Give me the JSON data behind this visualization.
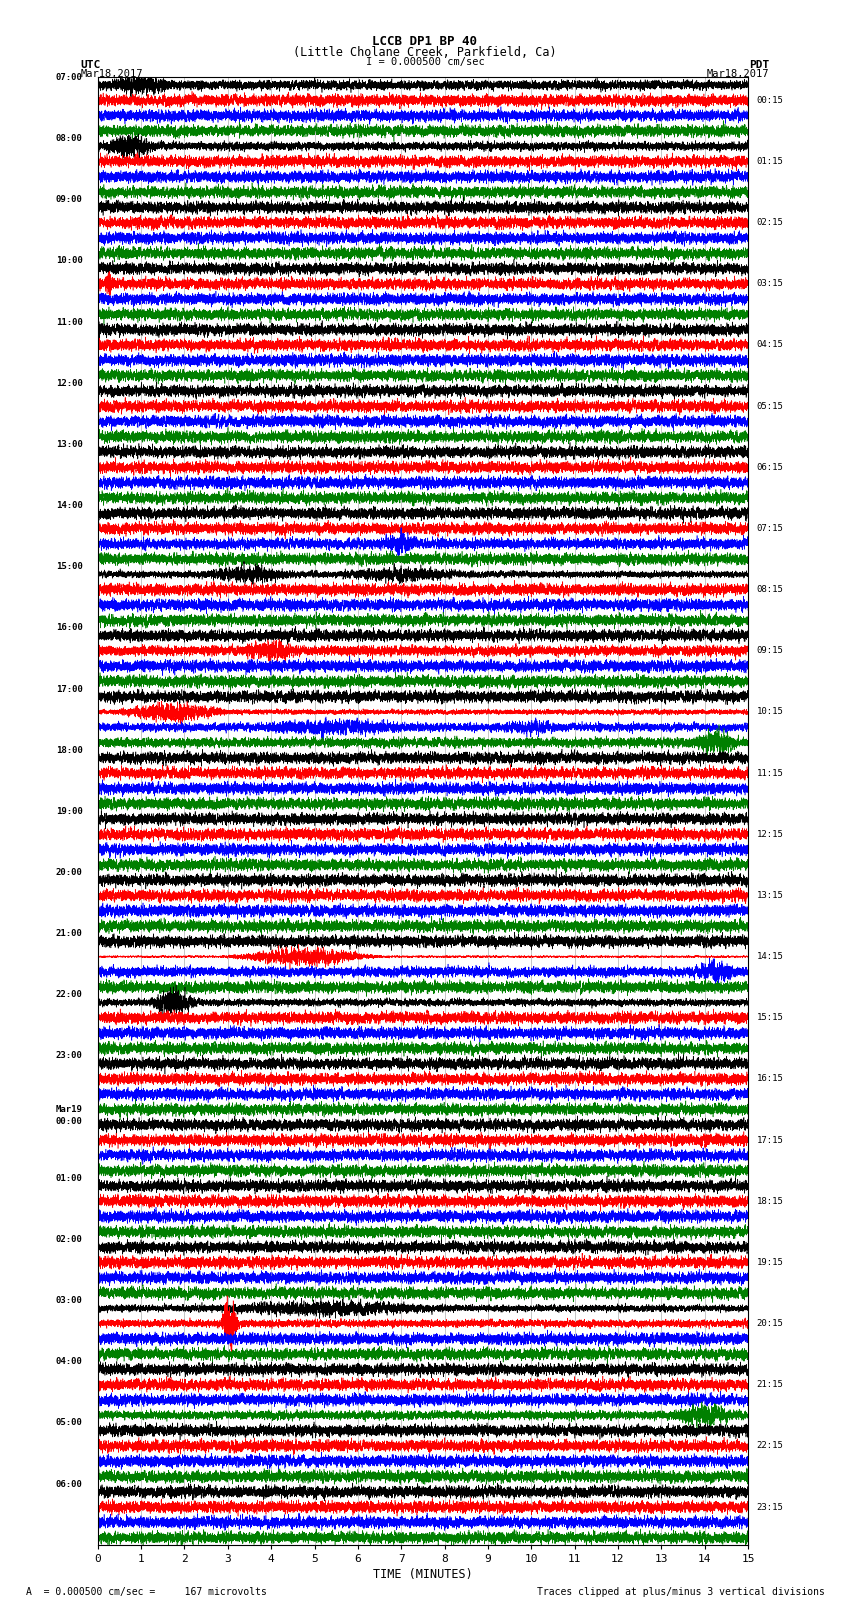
{
  "title_line1": "LCCB DP1 BP 40",
  "title_line2": "(Little Cholane Creek, Parkfield, Ca)",
  "scale_text": "I = 0.000500 cm/sec",
  "footer_left": "= 0.000500 cm/sec =     167 microvolts",
  "footer_right": "Traces clipped at plus/minus 3 vertical divisions",
  "label_utc": "UTC",
  "label_pdt": "PDT",
  "label_date_left": "Mar18,2017",
  "label_date_right": "Mar18,2017",
  "xlabel": "TIME (MINUTES)",
  "left_times": [
    "07:00",
    "08:00",
    "09:00",
    "10:00",
    "11:00",
    "12:00",
    "13:00",
    "14:00",
    "15:00",
    "16:00",
    "17:00",
    "18:00",
    "19:00",
    "20:00",
    "21:00",
    "22:00",
    "23:00",
    "00:00",
    "01:00",
    "02:00",
    "03:00",
    "04:00",
    "05:00",
    "06:00"
  ],
  "right_times": [
    "00:15",
    "01:15",
    "02:15",
    "03:15",
    "04:15",
    "05:15",
    "06:15",
    "07:15",
    "08:15",
    "09:15",
    "10:15",
    "11:15",
    "12:15",
    "13:15",
    "14:15",
    "15:15",
    "16:15",
    "17:15",
    "18:15",
    "19:15",
    "20:15",
    "21:15",
    "22:15",
    "23:15"
  ],
  "mar19_row": 17,
  "colors": [
    "black",
    "red",
    "blue",
    "green"
  ],
  "bg_color": "#ffffff",
  "n_rows": 24,
  "n_traces_per_row": 4,
  "minutes": 15,
  "sample_rate": 40
}
